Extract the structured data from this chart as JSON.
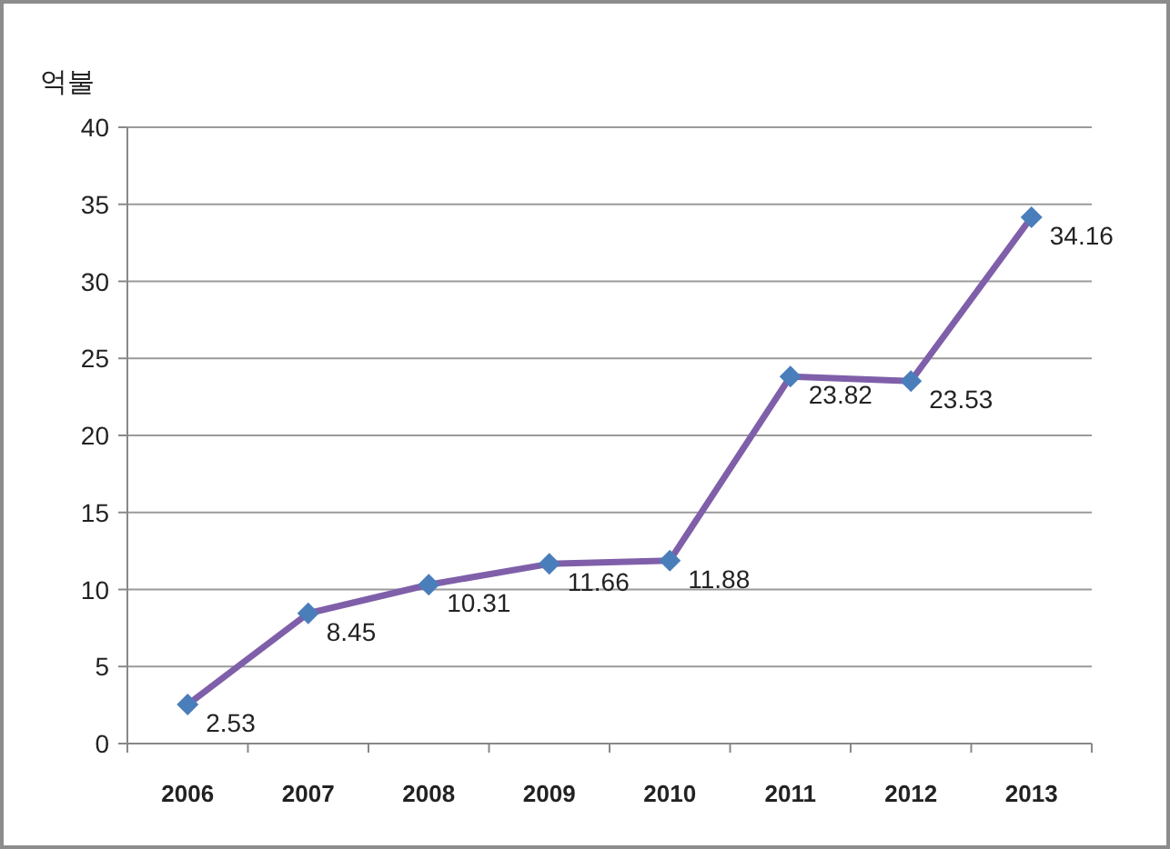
{
  "chart_data": {
    "type": "line",
    "ylabel": "억불",
    "categories": [
      "2006",
      "2007",
      "2008",
      "2009",
      "2010",
      "2011",
      "2012",
      "2013"
    ],
    "series": [
      {
        "color": "#7f5fa9",
        "colors": [
          "#4a7ebb",
          "#4a7ebb",
          "#4a7ebb",
          "#4a7ebb",
          "#4a7ebb",
          "#4a7ebb",
          "#4a7ebb",
          "#4a7ebb"
        ],
        "values": [
          2.53,
          8.45,
          10.31,
          11.66,
          11.88,
          23.82,
          23.53,
          34.16
        ]
      }
    ],
    "ylim": [
      0,
      40
    ],
    "yticks": [
      0,
      5,
      10,
      15,
      20,
      25,
      30,
      35,
      40
    ],
    "grid": "y",
    "marker": "diamond",
    "line_style": "solid",
    "data_labels": true
  }
}
